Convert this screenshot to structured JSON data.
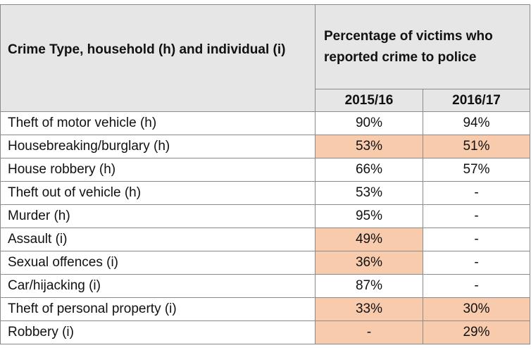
{
  "table": {
    "header": {
      "crime_type": "Crime Type, household (h) and individual (i)",
      "percentage": "Percentage of victims who reported crime to police",
      "year_1": "2015/16",
      "year_2": "2016/17"
    },
    "highlight_color": "#f8cbad",
    "header_color": "#e6e6e6",
    "rows": [
      {
        "crime": "Theft of motor vehicle (h)",
        "y1": "90%",
        "y2": "94%",
        "y1_hl": false,
        "y2_hl": false
      },
      {
        "crime": "Housebreaking/burglary (h)",
        "y1": "53%",
        "y2": "51%",
        "y1_hl": true,
        "y2_hl": true
      },
      {
        "crime": "House robbery (h)",
        "y1": "66%",
        "y2": "57%",
        "y1_hl": false,
        "y2_hl": false
      },
      {
        "crime": "Theft out of vehicle (h)",
        "y1": "53%",
        "y2": "-",
        "y1_hl": false,
        "y2_hl": false
      },
      {
        "crime": "Murder (h)",
        "y1": "95%",
        "y2": "-",
        "y1_hl": false,
        "y2_hl": false
      },
      {
        "crime": "Assault (i)",
        "y1": "49%",
        "y2": "-",
        "y1_hl": true,
        "y2_hl": false
      },
      {
        "crime": "Sexual offences (i)",
        "y1": "36%",
        "y2": "-",
        "y1_hl": true,
        "y2_hl": false
      },
      {
        "crime": "Car/hijacking (i)",
        "y1": "87%",
        "y2": "-",
        "y1_hl": false,
        "y2_hl": false
      },
      {
        "crime": "Theft of personal property (i)",
        "y1": "33%",
        "y2": "30%",
        "y1_hl": true,
        "y2_hl": true
      },
      {
        "crime": "Robbery (i)",
        "y1": "-",
        "y2": "29%",
        "y1_hl": true,
        "y2_hl": true
      }
    ]
  }
}
